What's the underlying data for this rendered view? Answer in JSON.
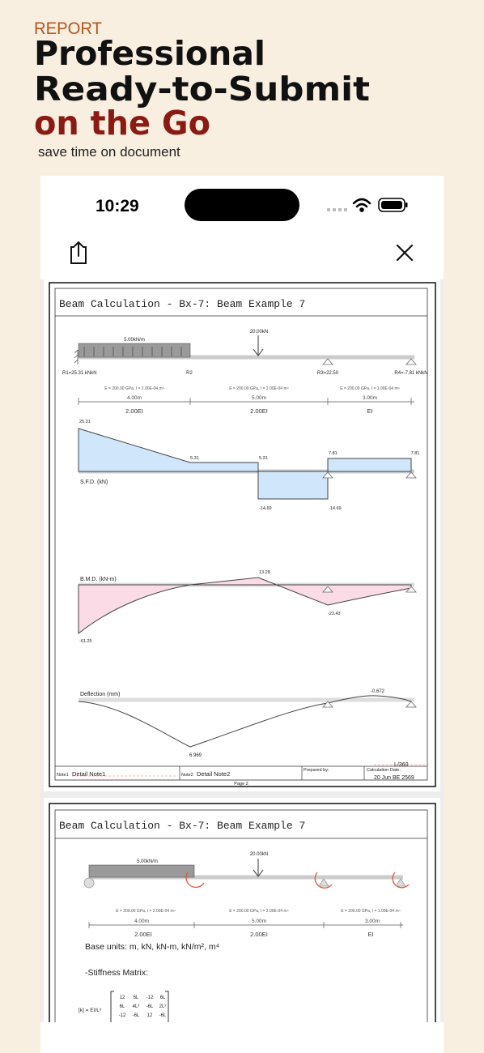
{
  "header": {
    "label": "REPORT",
    "title_lines": [
      "Professional",
      "Ready-to-Submit",
      "on the Go"
    ],
    "subtitle": "save time on document"
  },
  "status_bar": {
    "time": "10:29"
  },
  "pages": [
    {
      "title": "Beam Calculation - Bx-7: Beam Example 7",
      "beam": {
        "distributed_load": "5.00kN/m",
        "point_load": "20.00kN",
        "reactions": [
          "R1=25.31 kNkN",
          "R2",
          "R3=22.50",
          "R4=-7.81 kNkN"
        ],
        "spans": [
          {
            "section": "E = 200.00 GPa, I = 2.00E-04 m⁴",
            "length": "4.00m",
            "stiffness": "2.00EI"
          },
          {
            "section": "E = 200.00 GPa, I = 2.00E-04 m⁴",
            "length": "5.00m",
            "stiffness": "2.00EI"
          },
          {
            "section": "E = 200.00 GPa, I = 1.00E-04 m⁴",
            "length": "3.00m",
            "stiffness": "EI"
          }
        ]
      },
      "sfd": {
        "label": "S.F.D. (kN)",
        "values": [
          "25.31",
          "5.31",
          "5.31",
          "7.81",
          "7.81",
          "-14.69",
          "-14.69"
        ]
      },
      "bmd": {
        "label": "B.M.D. (kN-m)",
        "values": [
          "13.28",
          "-61.25",
          "-23.43"
        ]
      },
      "deflection": {
        "label": "Deflection (mm)",
        "values": [
          "-0.672",
          "6.969"
        ],
        "limit": "L/360"
      },
      "footer": {
        "note1_label": "Note1",
        "note1": "Detail Note1",
        "note2_label": "Note2",
        "note2": "Detail Note2",
        "prepared_by": "Prepared by:",
        "date_label": "Calculation Date:",
        "date": "20 Jun BE 2569"
      },
      "page_number": "Page 2"
    },
    {
      "title": "Beam Calculation - Bx-7: Beam Example 7",
      "beam": {
        "distributed_load": "5.00kN/m",
        "point_load": "20.00kN",
        "spans": [
          {
            "section": "E = 200.00 GPa, I = 2.00E-04 m⁴",
            "length": "4.00m",
            "stiffness": "2.00EI"
          },
          {
            "section": "E = 200.00 GPa, I = 2.00E-04 m⁴",
            "length": "5.00m",
            "stiffness": "2.00EI"
          },
          {
            "section": "E = 200.00 GPa, I = 1.00E-04 m⁴",
            "length": "3.00m",
            "stiffness": "EI"
          }
        ]
      },
      "base_units": "Base units: m,  kN,  kN-m,  kN/m²,  m⁴",
      "stiffness_heading": "-Stiffness Matrix:",
      "stiffness_formula": "[k]  =  EI/L³",
      "matrix": [
        [
          "12",
          "6L",
          "-12",
          "6L"
        ],
        [
          "6L",
          "4L²",
          "-6L",
          "2L²"
        ],
        [
          "-12",
          "-6L",
          "12",
          "-6L"
        ]
      ]
    }
  ]
}
